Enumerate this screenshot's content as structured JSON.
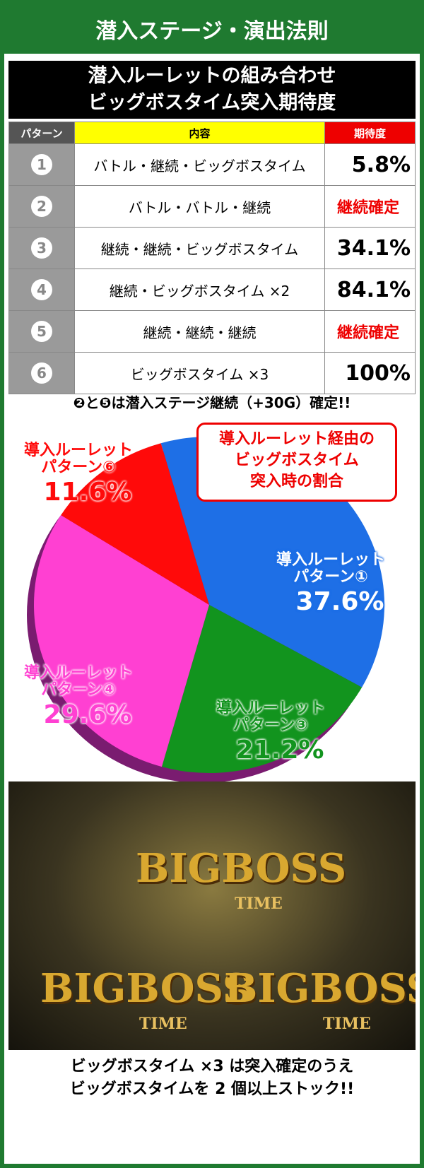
{
  "header": {
    "title": "潜入ステージ・演出法則"
  },
  "table": {
    "title_lines": [
      "潜入ルーレットの組み合わせ",
      "ビッグボスタイム突入期待度"
    ],
    "columns": [
      "パターン",
      "内容",
      "期待度"
    ],
    "rows": [
      [
        "1",
        "バトル・継続・ビッグボスタイム",
        "5.8%"
      ],
      [
        "2",
        "バトル・バトル・継続",
        "継続確定"
      ],
      [
        "3",
        "継続・継続・ビッグボスタイム",
        "34.1%"
      ],
      [
        "4",
        "継続・ビッグボスタイム ×2",
        "84.1%"
      ],
      [
        "5",
        "継続・継続・継続",
        "継続確定"
      ],
      [
        "6",
        "ビッグボスタイム ×3",
        "100%"
      ]
    ]
  },
  "note": "❷と❺は潜入ステージ継続（+30G）確定!!",
  "chart_data": {
    "type": "pie",
    "title": [
      "導入ルーレット経由の",
      "ビッグボスタイム",
      "突入時の割合"
    ],
    "categories": [
      "導入ルーレットパターン①",
      "導入ルーレットパターン③",
      "導入ルーレットパターン④",
      "導入ルーレットパターン⑥"
    ],
    "values": [
      37.6,
      21.2,
      29.6,
      11.6
    ],
    "value_labels": [
      "37.6%",
      "21.2%",
      "29.6%",
      "11.6%"
    ],
    "colors": [
      "#1e6fe6",
      "#12941e",
      "#ff40d2",
      "#ff0a0a"
    ]
  },
  "image": {
    "logo": "BIGBOSS",
    "sub": "TIME"
  },
  "caption": [
    "ビッグボスタイム ×3 は突入確定のうえ",
    "ビッグボスタイムを 2 個以上ストック!!"
  ]
}
